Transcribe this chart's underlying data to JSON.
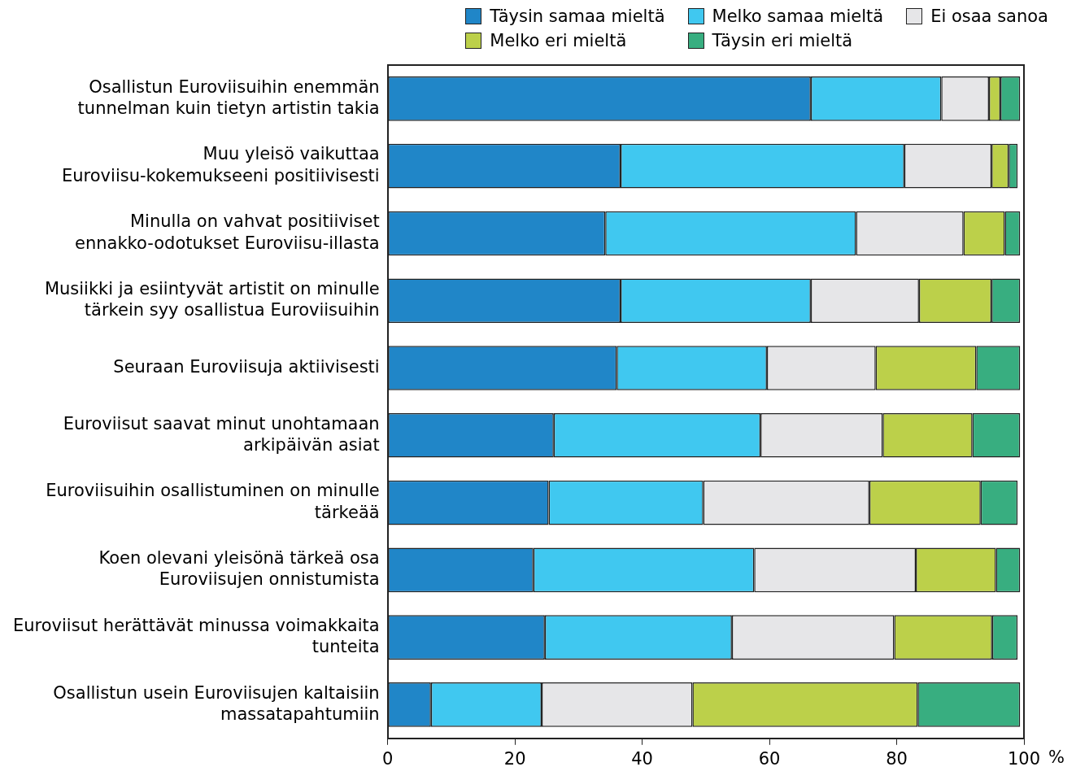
{
  "chart_data": {
    "type": "bar",
    "orientation": "horizontal",
    "stacked": true,
    "xlabel": "%",
    "categories": [
      "Osallistun Euroviisuihin enemmän tunnelman kuin tietyn artistin takia",
      "Muu yleisö vaikuttaa Euroviisu-kokemukseeni positiivisesti",
      "Minulla on vahvat positiiviset ennakko-odotukset Euroviisu-illasta",
      "Musiikki ja esiintyvät artistit on minulle tärkein syy osallistua Euroviisuihin",
      "Seuraan Euroviisuja aktiivisesti",
      "Euroviisut saavat minut unohtamaan arkipäivän asiat",
      "Euroviisuihin osallistuminen on minulle tärkeää",
      "Koen olevani yleisönä tärkeä osa Euroviisujen onnistumista",
      "Euroviisut herättävät minussa voimakkaita tunteita",
      "Osallistun usein Euroviisujen kaltaisiin massatapahtumiin"
    ],
    "series": [
      {
        "name": "Täysin samaa mieltä",
        "color": "#2086c8",
        "values": [
          66.5,
          36.6,
          34.2,
          36.6,
          36,
          26.1,
          25.3,
          22.9,
          24.7,
          6.8
        ]
      },
      {
        "name": "Melko samaa mieltä",
        "color": "#40c8f0",
        "values": [
          20.5,
          44.6,
          39.4,
          29.9,
          23.6,
          32.5,
          24.3,
          34.7,
          29.4,
          17.4
        ]
      },
      {
        "name": "Ei osaa sanoa",
        "color": "#e6e6e8",
        "values": [
          7.5,
          13.7,
          16.9,
          17,
          17.1,
          19.2,
          26.1,
          25.4,
          25.5,
          23.7
        ]
      },
      {
        "name": "Melko eri mieltä",
        "color": "#bcd04a",
        "values": [
          1.8,
          2.7,
          6.5,
          11.4,
          15.8,
          14.1,
          17.5,
          12.6,
          15.4,
          35.4
        ]
      },
      {
        "name": "Täysin eri mieltä",
        "color": "#38ae80",
        "values": [
          3.1,
          1.4,
          2.4,
          4.5,
          6.9,
          7.5,
          5.8,
          3.8,
          4,
          16.1
        ]
      }
    ],
    "xlim": [
      0,
      100
    ],
    "xticks": [
      0,
      20,
      40,
      60,
      80,
      100
    ],
    "grid": false,
    "legend": "top right"
  }
}
